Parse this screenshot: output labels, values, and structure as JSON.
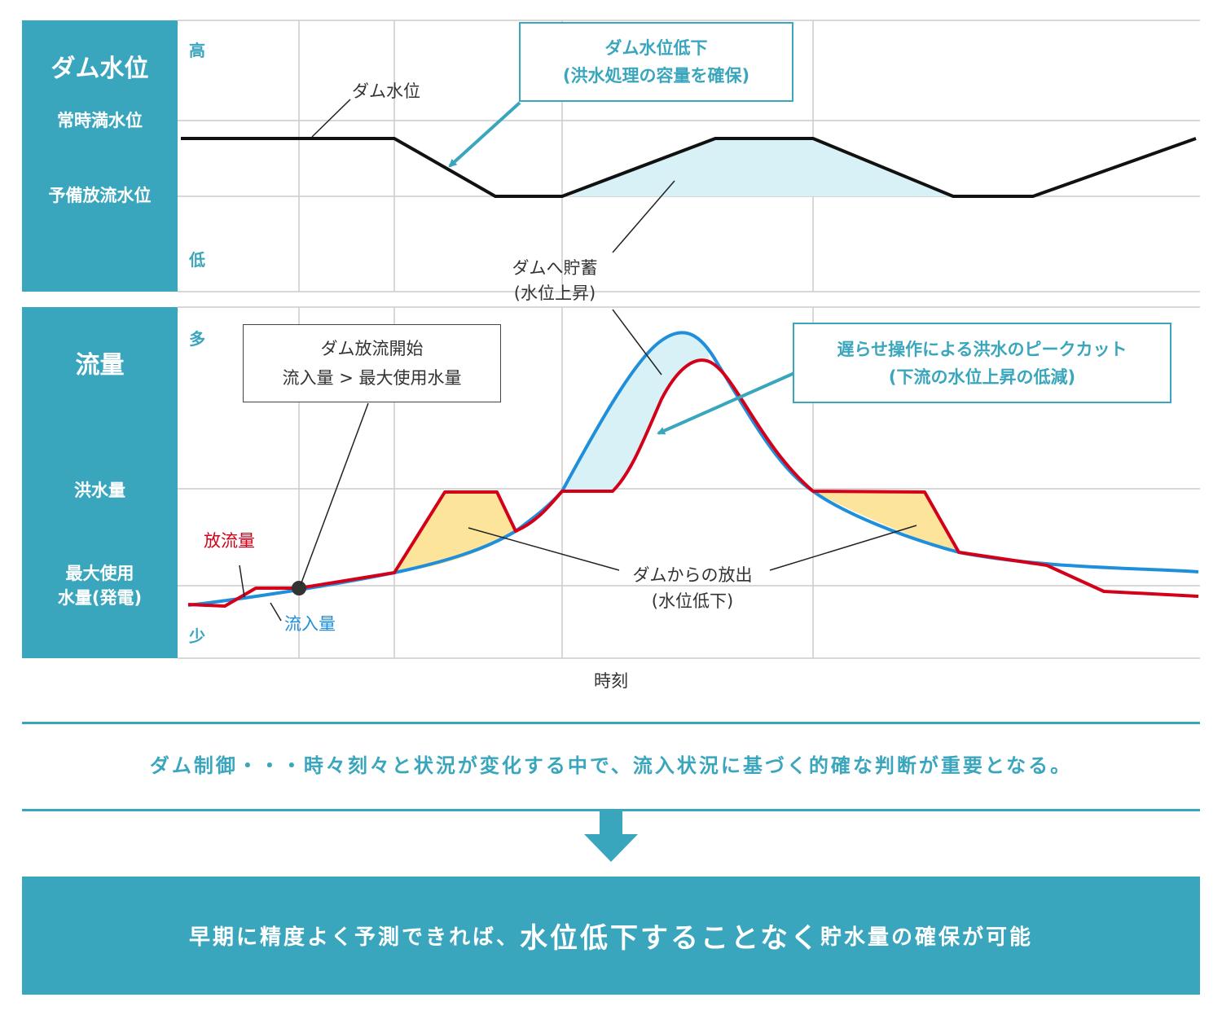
{
  "top_panel": {
    "title": "ダム水位",
    "labels": {
      "full": "常時満水位",
      "reserve": "予備放流水位"
    },
    "axis_high": "高",
    "axis_low": "低"
  },
  "bottom_panel": {
    "title": "流量",
    "labels": {
      "flood": "洪水量",
      "max_use_line1": "最大使用",
      "max_use_line2": "水量(発電)"
    },
    "axis_high": "多",
    "axis_low": "少"
  },
  "x_axis_label": "時刻",
  "annotations": {
    "dam_level": "ダム水位",
    "level_drop_line1": "ダム水位低下",
    "level_drop_line2": "(洪水処理の容量を確保)",
    "storage_line1": "ダムへ貯蓄",
    "storage_line2": "(水位上昇)",
    "release_start_line1": "ダム放流開始",
    "release_start_line2": "流入量 > 最大使用水量",
    "peak_cut_line1": "遅らせ操作による洪水のピークカット",
    "peak_cut_line2": "(下流の水位上昇の低減)",
    "outflow": "放流量",
    "inflow": "流入量",
    "discharge_line1": "ダムからの放出",
    "discharge_line2": "(水位低下)"
  },
  "summary": "ダム制御・・・時々刻々と状況が変化する中で、流入状況に基づく的確な判断が重要となる。",
  "conclusion": {
    "part1": "早期に精度よく予測できれば、",
    "part2": "水位低下することなく",
    "part3": "貯水量の確保が可能"
  },
  "colors": {
    "accent": "#3aa6bd",
    "inflow": "#1f8fdc",
    "outflow": "#d4001a",
    "storage_fill": "#d7f1f6",
    "release_fill": "#fde49b",
    "dam_level": "#111111"
  }
}
